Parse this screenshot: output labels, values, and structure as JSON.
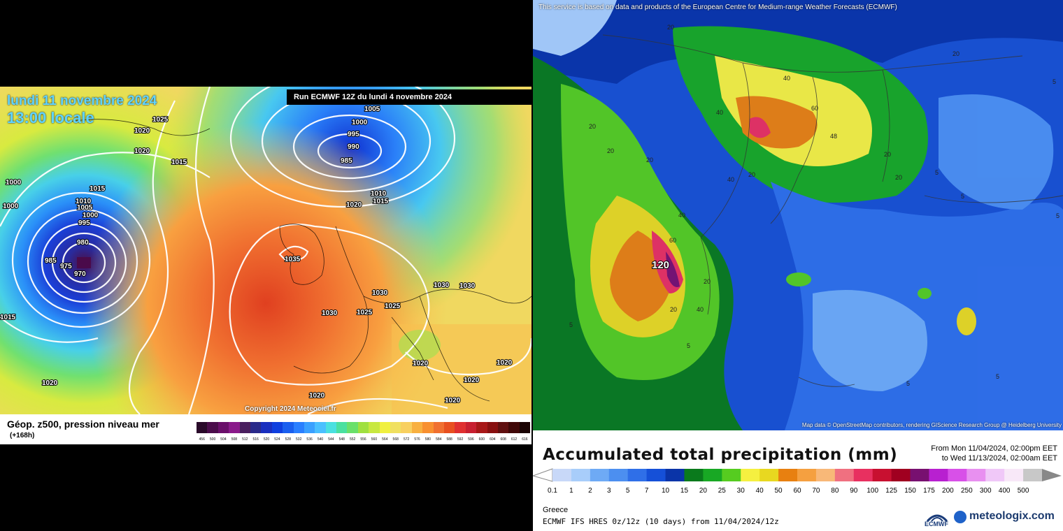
{
  "left_panel": {
    "date_line1": "lundi 11 novembre 2024",
    "date_line2": "13:00 locale",
    "run_text": "Run ECMWF 12Z du lundi 4 novembre 2024",
    "copyright": "Copyright 2024 Meteociel.fr",
    "legend_title": "Géop. z500, pression niveau mer",
    "legend_sub": "(+168h)",
    "scale_labels": [
      "456",
      "500",
      "504",
      "508",
      "512",
      "516",
      "520",
      "524",
      "528",
      "532",
      "536",
      "540",
      "544",
      "548",
      "552",
      "556",
      "560",
      "564",
      "568",
      "572",
      "576",
      "580",
      "584",
      "588",
      "592",
      "596",
      "600",
      "604",
      "608",
      "612",
      "616"
    ],
    "scale_colors": [
      "#2a0a2a",
      "#4b0d4b",
      "#6a0f6a",
      "#8a1a8a",
      "#4a1f5f",
      "#2a2a8a",
      "#1a2fbf",
      "#0f3fdf",
      "#1a5fef",
      "#2a7fff",
      "#3aa0ff",
      "#4ac0ff",
      "#4ae0e0",
      "#4ae0a0",
      "#6ae06a",
      "#a0e040",
      "#c8e840",
      "#f0f040",
      "#f0e060",
      "#f8d060",
      "#f8b040",
      "#f89030",
      "#f07030",
      "#e85020",
      "#e03030",
      "#c82030",
      "#a81818",
      "#881010",
      "#601010",
      "#400808",
      "#1a0404"
    ],
    "isobar_labels": [
      "1025",
      "1020",
      "1020",
      "1015",
      "1000",
      "1000",
      "1015",
      "1010",
      "1005",
      "1000",
      "995",
      "980",
      "985",
      "975",
      "970",
      "1015",
      "1020",
      "1005",
      "1000",
      "995",
      "990",
      "985",
      "1010",
      "1015",
      "1020",
      "1035",
      "1030",
      "1030",
      "1030",
      "1025",
      "1025",
      "1030",
      "1020",
      "1020",
      "1020",
      "1020",
      "1020"
    ]
  },
  "right_panel": {
    "notice": "This service is based on data and products of the European Centre for Medium-range Weather Forecasts (ECMWF)",
    "map_credit": "Map data © OpenStreetMap contributors, rendering GIScience Research Group @ Heidelberg University",
    "title": "Accumulated total precipitation (mm)",
    "from": "From Mon 11/04/2024, 02:00pm EET",
    "to": "to Wed 11/13/2024, 02:00am EET",
    "region": "Greece",
    "model_info": "ECMWF IFS HRES 0z/12z (10 days) from 11/04/2024/12z",
    "ecmwf_logo": "ECMWF",
    "brand": "meteologix.com",
    "scale_labels": [
      "0.1",
      "1",
      "2",
      "3",
      "5",
      "7",
      "10",
      "15",
      "20",
      "25",
      "30",
      "40",
      "50",
      "60",
      "70",
      "80",
      "90",
      "100",
      "125",
      "150",
      "175",
      "200",
      "250",
      "300",
      "400",
      "500"
    ],
    "scale_colors": [
      "#c8d8f8",
      "#a8cdfa",
      "#6eaaf5",
      "#4c8ff0",
      "#2f6fe8",
      "#1550d8",
      "#0a34a8",
      "#0a7a1c",
      "#18a824",
      "#56cc20",
      "#f5f040",
      "#e8d820",
      "#e88010",
      "#f5a040",
      "#f8b878",
      "#f07080",
      "#e83060",
      "#c81030",
      "#a00020",
      "#781070",
      "#b820d0",
      "#d850e8",
      "#e890f0",
      "#f0c8f8",
      "#f8e8f8",
      "#c8c8c8"
    ],
    "map_labels": [
      "120",
      "60",
      "40",
      "40",
      "40",
      "40",
      "20",
      "20",
      "20",
      "20",
      "20",
      "20",
      "20",
      "20",
      "20",
      "20",
      "5",
      "5",
      "5",
      "5",
      "5",
      "5",
      "5",
      "5",
      "60",
      "48",
      "40"
    ]
  }
}
